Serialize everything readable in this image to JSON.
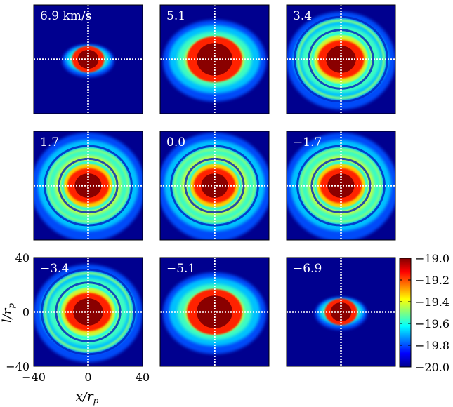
{
  "chart_data": {
    "type": "heatmap",
    "description_quantity": "log column density map grid",
    "panels": [
      {
        "label": "6.9 km/s",
        "velocity": 6.9,
        "rings": [],
        "core_radius": 7,
        "halo_rx": 19,
        "halo_ry": 12
      },
      {
        "label": "5.1",
        "velocity": 5.1,
        "rings": [],
        "core_radius": 12,
        "halo_rx": 38,
        "halo_ry": 30
      },
      {
        "label": "3.4",
        "velocity": 3.4,
        "rings": [
          20,
          30
        ],
        "core_radius": 10,
        "halo_rx": 40,
        "halo_ry": 36
      },
      {
        "label": "1.7",
        "velocity": 1.7,
        "rings": [
          18,
          28
        ],
        "core_radius": 9,
        "halo_rx": 42,
        "halo_ry": 40
      },
      {
        "label": "0.0",
        "velocity": 0.0,
        "rings": [
          18,
          28
        ],
        "core_radius": 9,
        "halo_rx": 42,
        "halo_ry": 40
      },
      {
        "label": "-1.7",
        "velocity": -1.7,
        "rings": [
          18,
          28
        ],
        "core_radius": 9,
        "halo_rx": 42,
        "halo_ry": 40
      },
      {
        "label": "-3.4",
        "velocity": -3.4,
        "rings": [
          20,
          30
        ],
        "core_radius": 10,
        "halo_rx": 40,
        "halo_ry": 36
      },
      {
        "label": "-5.1",
        "velocity": -5.1,
        "rings": [],
        "core_radius": 12,
        "halo_rx": 38,
        "halo_ry": 30
      },
      {
        "label": "-6.9",
        "velocity": -6.9,
        "rings": [],
        "core_radius": 7,
        "halo_rx": 19,
        "halo_ry": 12
      }
    ],
    "x_axis": {
      "label": "x/r_p",
      "range": [
        -40,
        40
      ],
      "ticks": [
        -40,
        0,
        40
      ],
      "tick_labels": [
        "−40",
        "0",
        "40"
      ]
    },
    "y_axis": {
      "label": "l/r_p",
      "range": [
        -40,
        40
      ],
      "ticks": [
        -40,
        0,
        40
      ],
      "tick_labels": [
        "−40",
        "0",
        "40"
      ]
    },
    "colorbar": {
      "range": [
        -20.0,
        -19.0
      ],
      "ticks": [
        -19.0,
        -19.2,
        -19.4,
        -19.6,
        -19.8,
        -20.0
      ],
      "tick_labels": [
        "−19.0",
        "−19.2",
        "−19.4",
        "−19.6",
        "−19.8",
        "−20.0"
      ],
      "colormap": "jet"
    },
    "colors": {
      "background": "#00008f",
      "crosshair": "#ffffff"
    }
  }
}
